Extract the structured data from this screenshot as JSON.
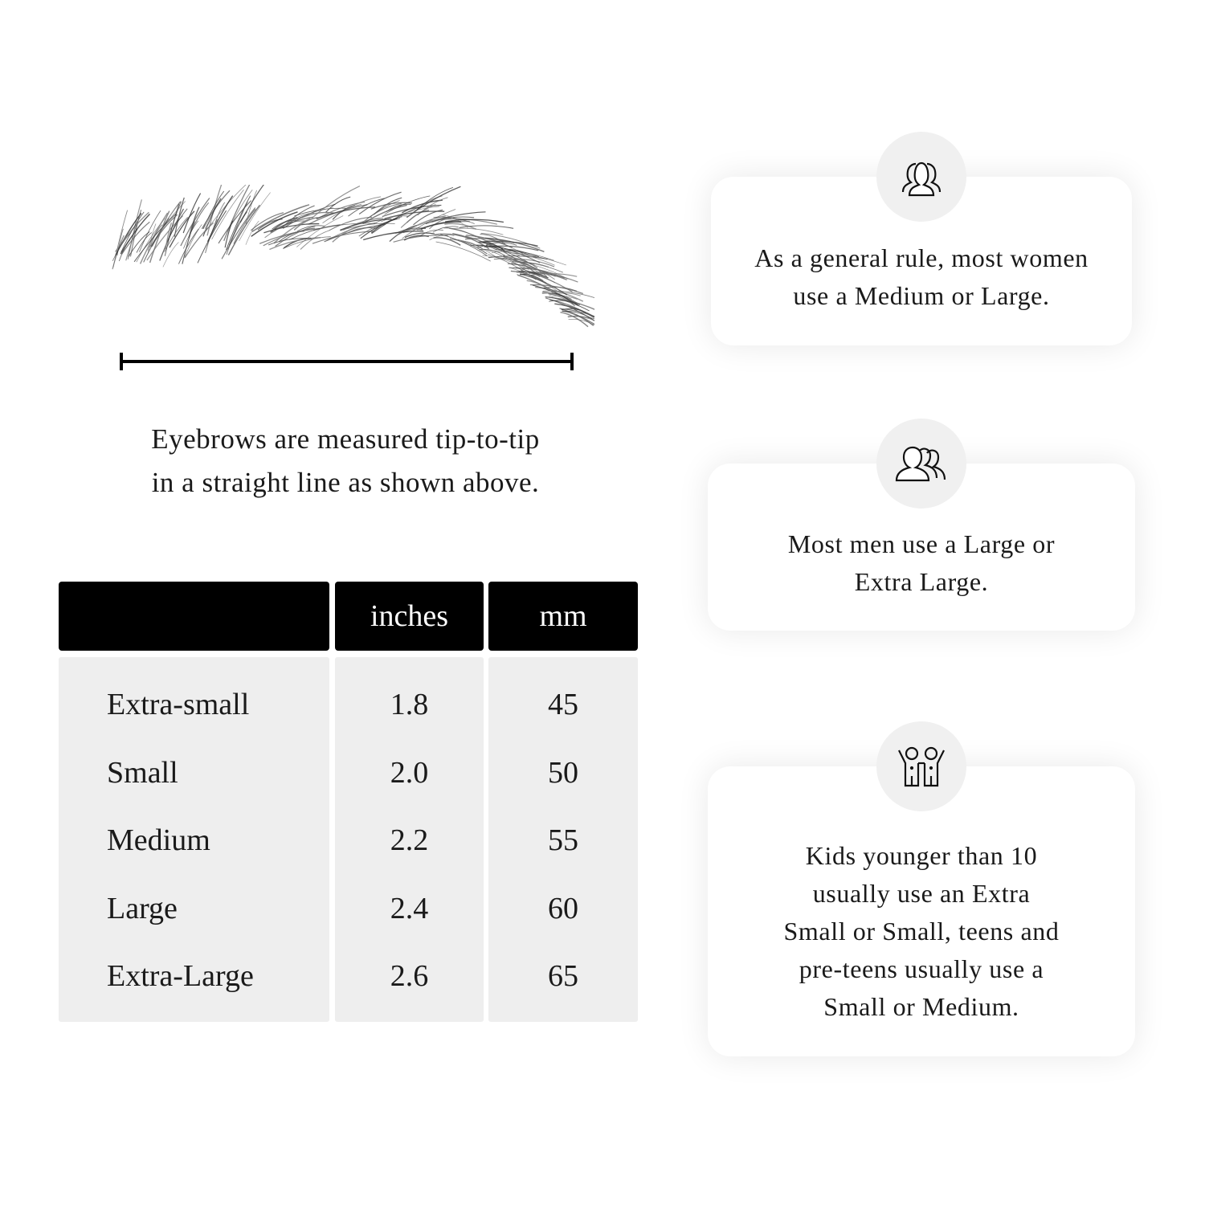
{
  "caption": {
    "line1": "Eyebrows are measured tip-to-tip",
    "line2": "in a straight line as shown above."
  },
  "table": {
    "headers": [
      "",
      "inches",
      "mm"
    ],
    "rows": [
      {
        "size": "Extra-small",
        "inches": "1.8",
        "mm": "45"
      },
      {
        "size": "Small",
        "inches": "2.0",
        "mm": "50"
      },
      {
        "size": "Medium",
        "inches": "2.2",
        "mm": "55"
      },
      {
        "size": "Large",
        "inches": "2.4",
        "mm": "60"
      },
      {
        "size": "Extra-Large",
        "inches": "2.6",
        "mm": "65"
      }
    ]
  },
  "cards": [
    {
      "icon": "women-group-icon",
      "lines": [
        "As a general rule, most women",
        "use a Medium or Large."
      ]
    },
    {
      "icon": "men-group-icon",
      "lines": [
        "Most men use a Large or",
        "Extra Large."
      ]
    },
    {
      "icon": "kids-icon",
      "lines": [
        "Kids younger than 10",
        "usually use an Extra",
        "Small or Small, teens and",
        "pre-teens usually use a",
        "Small or Medium."
      ]
    }
  ],
  "colors": {
    "header_bg": "#000000",
    "cell_bg": "#eeeeee",
    "icon_circle": "#f0f0f0"
  }
}
